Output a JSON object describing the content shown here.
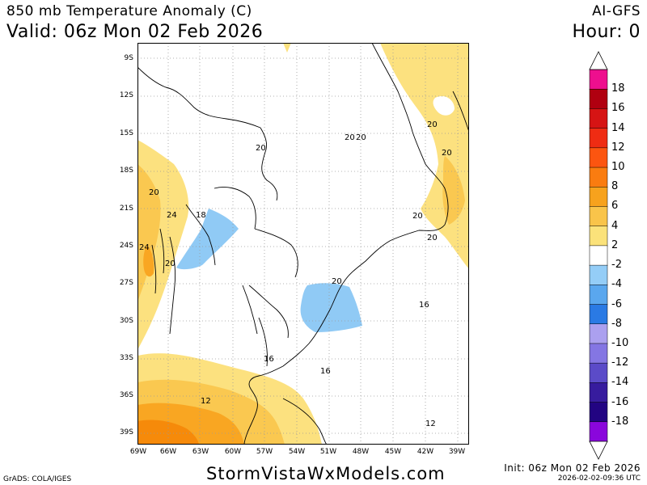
{
  "header": {
    "title": "850 mb Temperature Anomaly (C)",
    "valid": "Valid: 06z Mon 02 Feb 2026",
    "model": "AI-GFS",
    "hour": "Hour: 0"
  },
  "footer": {
    "grads": "GrADS: COLA/IGES",
    "site": "StormVistaWxModels.com",
    "init": "Init: 06z Mon 02 Feb 2026",
    "stamp": "2026-02-02-09:36 UTC"
  },
  "map": {
    "lat_labels": [
      "9S",
      "12S",
      "15S",
      "18S",
      "21S",
      "24S",
      "27S",
      "30S",
      "33S",
      "36S",
      "39S"
    ],
    "lon_labels": [
      "69W",
      "66W",
      "63W",
      "60W",
      "57W",
      "54W",
      "51W",
      "48W",
      "45W",
      "42W",
      "39W"
    ],
    "contour_labels": [
      "20",
      "20",
      "20",
      "20",
      "20",
      "20",
      "20",
      "24",
      "24",
      "20",
      "18",
      "20",
      "16",
      "16",
      "16",
      "12",
      "12",
      "20"
    ],
    "colors": {
      "pos2": "#fce17f",
      "pos4": "#fac850",
      "pos6": "#f9a622",
      "pos8": "#f68a0a",
      "neg2": "#90caf5"
    }
  },
  "colorbar": {
    "labels": [
      "18",
      "16",
      "14",
      "12",
      "10",
      "8",
      "6",
      "4",
      "2",
      "-2",
      "-4",
      "-6",
      "-8",
      "-10",
      "-12",
      "-14",
      "-16",
      "-18"
    ],
    "colors": [
      "#ee0f8e",
      "#b00010",
      "#d61414",
      "#ef2c13",
      "#fc5510",
      "#fa7c10",
      "#f7a21d",
      "#f9c44a",
      "#fbe27a",
      "#ffffff",
      "#94cdf7",
      "#5aa7ee",
      "#2a7ae4",
      "#aba0ef",
      "#8476e3",
      "#5b4bc8",
      "#371c9e",
      "#220482",
      "#8a06dc"
    ]
  }
}
